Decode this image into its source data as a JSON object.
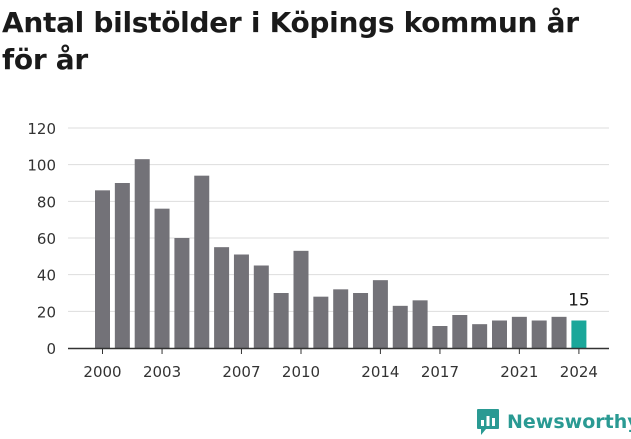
{
  "chart_data": {
    "type": "bar",
    "title": "Antal bilstölder i Köpings kommun år för år",
    "xlabel": "",
    "ylabel": "",
    "categories": [
      2000,
      2001,
      2002,
      2003,
      2004,
      2005,
      2006,
      2007,
      2008,
      2009,
      2010,
      2011,
      2012,
      2013,
      2014,
      2015,
      2016,
      2017,
      2018,
      2019,
      2020,
      2021,
      2022,
      2023,
      2024
    ],
    "values": [
      86,
      90,
      103,
      76,
      60,
      94,
      55,
      51,
      45,
      30,
      53,
      28,
      32,
      30,
      37,
      23,
      26,
      12,
      18,
      13,
      15,
      17,
      15,
      17,
      15
    ],
    "x_tick_labels": [
      "2000",
      "2003",
      "2007",
      "2010",
      "2014",
      "2017",
      "2021",
      "2024"
    ],
    "y_ticks": [
      0,
      20,
      40,
      60,
      80,
      100,
      120
    ],
    "ylim": [
      0,
      120
    ],
    "grid": true,
    "legend": "none",
    "highlight": {
      "category": 2024,
      "label": "15"
    },
    "colors": {
      "bar": "#737278",
      "highlight": "#1aa79a",
      "grid": "#dddddd",
      "axis": "#333333"
    }
  },
  "brand": {
    "name": "Newsworthy",
    "color": "#2a9a93",
    "icon": "bar-chart-speech-bubble-icon"
  }
}
